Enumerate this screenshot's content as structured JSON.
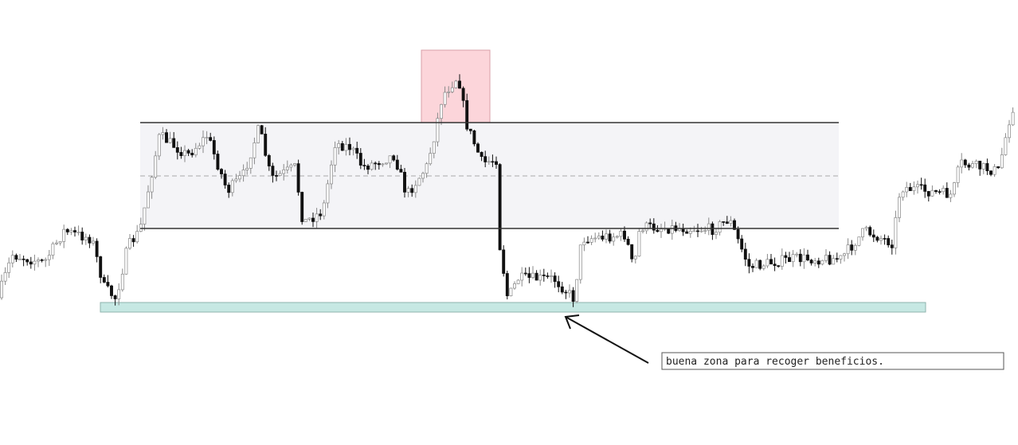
{
  "annotation": "buena zona para recoger beneficios."
}
